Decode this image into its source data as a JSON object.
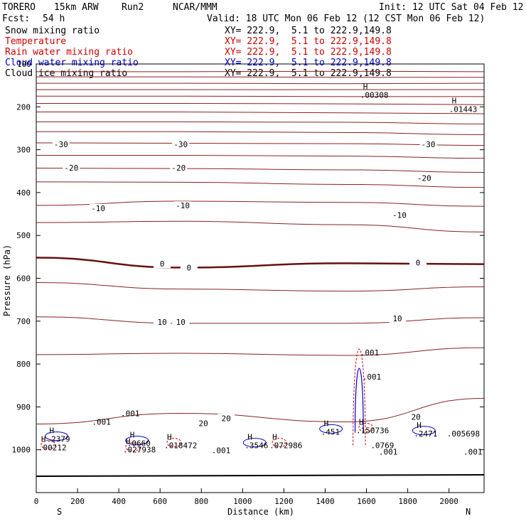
{
  "header": {
    "model": "TORERO",
    "resolution": "15km ARW",
    "run": "Run2",
    "center": "NCAR/MMM",
    "init": "Init: 12 UTC Sat 04 Feb 12",
    "fcst_label": "Fcst:",
    "fcst_value": "54 h",
    "valid": "Valid: 18 UTC Mon 06 Feb 12 (12 CST Mon 06 Feb 12)"
  },
  "fields": [
    {
      "name": "Snow mixing ratio",
      "xy": "XY= 222.9,  5.1 to 222.9,149.8",
      "color": "#000000"
    },
    {
      "name": "Temperature",
      "xy": "XY= 222.9,  5.1 to 222.9,149.8",
      "color": "#cc0000"
    },
    {
      "name": "Rain water mixing ratio",
      "xy": "XY= 222.9,  5.1 to 222.9,149.8",
      "color": "#cc0000"
    },
    {
      "name": "Cloud water mixing ratio",
      "xy": "XY= 222.9,  5.1 to 222.9,149.8",
      "color": "#0000cc"
    },
    {
      "name": "Cloud ice mixing ratio",
      "xy": "XY= 222.9,  5.1 to 222.9,149.8",
      "color": "#000000"
    }
  ],
  "chart_data": {
    "type": "cross-section contour",
    "xlabel": "Distance (km)",
    "ylabel": "Pressure (hPa)",
    "xlim": [
      0,
      2170
    ],
    "ylim": [
      1100,
      100
    ],
    "x_ticks": [
      0,
      200,
      400,
      600,
      800,
      1000,
      1200,
      1400,
      1600,
      1800,
      2000
    ],
    "y_ticks": [
      200,
      300,
      400,
      500,
      600,
      700,
      800,
      900,
      1000
    ],
    "y_top_label": "100",
    "left_end": "S",
    "right_end": "N",
    "temperature_contours": [
      {
        "level": -50,
        "pressure": [
          118,
          118,
          117,
          118
        ]
      },
      {
        "level": -50,
        "pressure": [
          130,
          130,
          131,
          131
        ]
      },
      {
        "level": -45,
        "pressure": [
          145,
          145,
          146,
          145
        ]
      },
      {
        "level": -45,
        "pressure": [
          160,
          160,
          160,
          160
        ]
      },
      {
        "level": -45,
        "pressure": [
          175,
          175,
          176,
          176
        ]
      },
      {
        "level": -40,
        "pressure": [
          192,
          192,
          193,
          195
        ]
      },
      {
        "level": -40,
        "pressure": [
          212,
          212,
          214,
          216
        ]
      },
      {
        "level": -35,
        "pressure": [
          235,
          235,
          236,
          240
        ]
      },
      {
        "level": -35,
        "pressure": [
          258,
          258,
          260,
          265
        ]
      },
      {
        "level": -30,
        "pressure": [
          284,
          285,
          286,
          290
        ]
      },
      {
        "level": -25,
        "pressure": [
          313,
          313,
          315,
          320
        ]
      },
      {
        "level": -20,
        "pressure": [
          343,
          344,
          347,
          353
        ]
      },
      {
        "level": -15,
        "pressure": [
          375,
          376,
          381,
          388
        ]
      },
      {
        "level": -10,
        "pressure": [
          430,
          420,
          423,
          432
        ]
      },
      {
        "level": -5,
        "pressure": [
          470,
          467,
          475,
          492
        ]
      },
      {
        "level": 0,
        "pressure": [
          552,
          575,
          565,
          567
        ]
      },
      {
        "level": 5,
        "pressure": [
          610,
          625,
          630,
          620
        ]
      },
      {
        "level": 10,
        "pressure": [
          690,
          705,
          705,
          692
        ]
      },
      {
        "level": 15,
        "pressure": [
          778,
          775,
          780,
          762
        ]
      },
      {
        "level": 20,
        "pressure": [
          940,
          915,
          935,
          880
        ]
      }
    ],
    "contour_x": [
      0,
      700,
      1500,
      2170
    ],
    "contour_labels": [
      {
        "text": "-30",
        "x": 120,
        "p": 289
      },
      {
        "text": "-30",
        "x": 700,
        "p": 289
      },
      {
        "text": "-30",
        "x": 1900,
        "p": 289
      },
      {
        "text": "-20",
        "x": 170,
        "p": 344
      },
      {
        "text": "-20",
        "x": 690,
        "p": 344
      },
      {
        "text": "-20",
        "x": 1880,
        "p": 368
      },
      {
        "text": "-10",
        "x": 300,
        "p": 438
      },
      {
        "text": "-10",
        "x": 710,
        "p": 432
      },
      {
        "text": "-10",
        "x": 1760,
        "p": 454
      },
      {
        "text": "0",
        "x": 610,
        "p": 568
      },
      {
        "text": "0",
        "x": 740,
        "p": 577
      },
      {
        "text": "0",
        "x": 1850,
        "p": 565
      },
      {
        "text": "10",
        "x": 610,
        "p": 704
      },
      {
        "text": "10",
        "x": 700,
        "p": 704
      },
      {
        "text": "10",
        "x": 1750,
        "p": 695
      },
      {
        "text": "20",
        "x": 810,
        "p": 940
      },
      {
        "text": "20",
        "x": 920,
        "p": 928
      },
      {
        "text": "20",
        "x": 1840,
        "p": 925
      }
    ],
    "maxima_labels": [
      {
        "mark": "H",
        "value": ".00308",
        "x": 1570,
        "p": 172,
        "series": "cloud_ice"
      },
      {
        "mark": "H",
        "value": ".01443",
        "x": 2000,
        "p": 205,
        "series": "cloud_ice"
      },
      {
        "mark": "H",
        "value": ".2379",
        "x": 50,
        "p": 975,
        "series": "cloud_water"
      },
      {
        "mark": "H",
        "value": ".00212",
        "x": 10,
        "p": 995,
        "series": "rain_water"
      },
      {
        "mark": "H",
        "value": ".0660",
        "x": 440,
        "p": 985,
        "series": "cloud_water"
      },
      {
        "mark": "H",
        "value": ".027938",
        "x": 420,
        "p": 1000,
        "series": "rain_water"
      },
      {
        "mark": "H",
        "value": ".018472",
        "x": 620,
        "p": 990,
        "series": "rain_water"
      },
      {
        "mark": "",
        "value": ".001",
        "x": 850,
        "p": 1001,
        "series": "cloud_water"
      },
      {
        "mark": "H",
        "value": ".3546",
        "x": 1010,
        "p": 990,
        "series": "cloud_water"
      },
      {
        "mark": "H",
        "value": ".072986",
        "x": 1130,
        "p": 990,
        "series": "rain_water"
      },
      {
        "mark": "H",
        "value": ".451",
        "x": 1380,
        "p": 958,
        "series": "cloud_water"
      },
      {
        "mark": "H",
        "value": ".150736",
        "x": 1550,
        "p": 955,
        "series": "rain_water"
      },
      {
        "mark": "",
        "value": ".0769",
        "x": 1620,
        "p": 990,
        "series": "cloud_water"
      },
      {
        "mark": "H",
        "value": ".2471",
        "x": 1830,
        "p": 962,
        "series": "cloud_water"
      },
      {
        "mark": "",
        "value": ".005698",
        "x": 1990,
        "p": 962,
        "series": "rain_water"
      },
      {
        "mark": "",
        "value": ".001",
        "x": 1570,
        "p": 773,
        "series": "cloud_water"
      },
      {
        "mark": "",
        "value": ".001",
        "x": 1580,
        "p": 830,
        "series": "cloud_water"
      },
      {
        "mark": "",
        "value": ".001",
        "x": 270,
        "p": 935,
        "series": "rain_water"
      },
      {
        "mark": "",
        "value": ".001",
        "x": 410,
        "p": 915,
        "series": "rain_water"
      },
      {
        "mark": "",
        "value": ".001",
        "x": 1660,
        "p": 1005,
        "series": "rain_water"
      },
      {
        "mark": "",
        "value": ".001",
        "x": 2070,
        "p": 1005,
        "series": "rain_water"
      }
    ]
  }
}
